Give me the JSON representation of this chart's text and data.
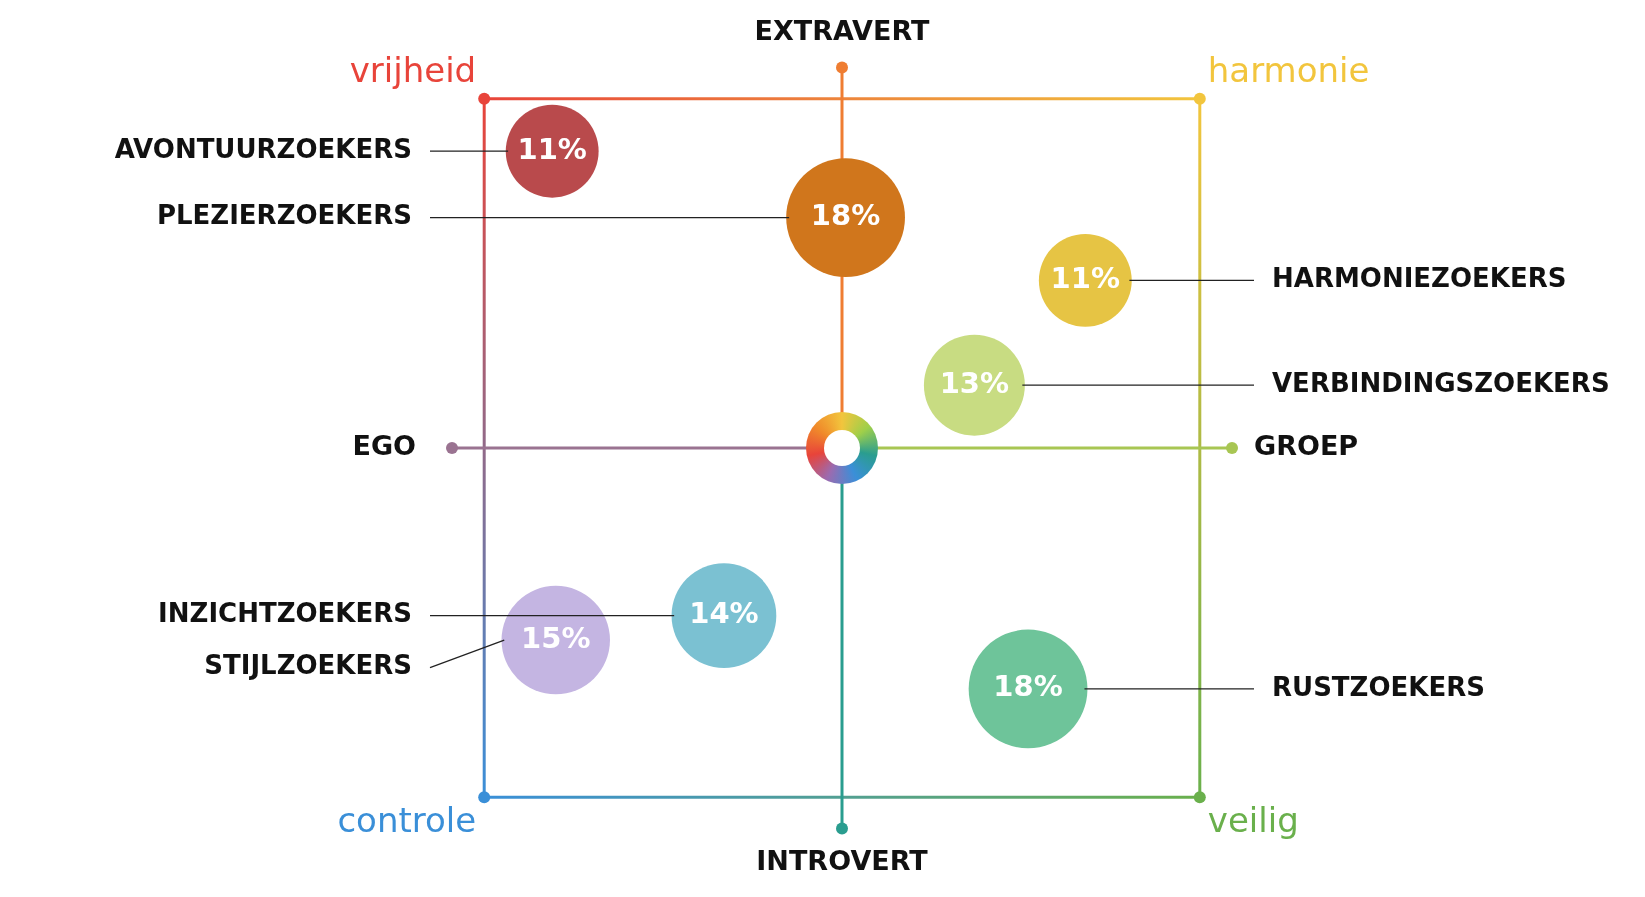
{
  "chart_data": {
    "type": "other",
    "categories": [
      "AVONTUURZOEKERS",
      "PLEZIERZOEKERS",
      "HARMONIEZOEKERS",
      "VERBINDINGSZOEKERS",
      "INZICHTZOEKERS",
      "STIJLZOEKERS",
      "RUSTZOEKERS"
    ],
    "values": [
      11,
      18,
      11,
      13,
      14,
      15,
      18
    ],
    "colors": [
      "#b94a4c",
      "#d0761c",
      "#e6c444",
      "#c8dc82",
      "#7bc1d2",
      "#c4b5e2",
      "#6ec49a"
    ],
    "value_labels": [
      "11%",
      "18%",
      "11%",
      "13%",
      "14%",
      "15%",
      "18%"
    ],
    "annotations": [
      "EXTRAVERT",
      "INTROVERT",
      "EGO",
      "GROEP",
      "vrijheid",
      "harmonie",
      "controle",
      "veilig"
    ]
  }
}
